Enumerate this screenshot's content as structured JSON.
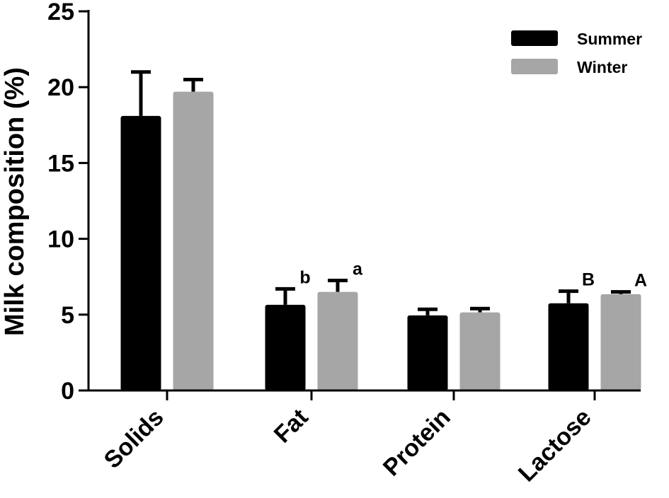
{
  "chart_data": {
    "type": "bar",
    "ylabel": "Milk composition (%)",
    "xlabel": "",
    "ylim": [
      0,
      25
    ],
    "yticks": [
      "0",
      "5",
      "10",
      "15",
      "20",
      "25"
    ],
    "categories": [
      "Solids",
      "Fat",
      "Protein",
      "Lactose"
    ],
    "series": [
      {
        "name": "Summer",
        "color": "#000000",
        "values": [
          18.1,
          5.65,
          4.95,
          5.75
        ],
        "errors": [
          2.9,
          1.05,
          0.4,
          0.8
        ],
        "significance": [
          "",
          "b",
          "",
          "B"
        ]
      },
      {
        "name": "Winter",
        "color": "#a6a6a6",
        "values": [
          19.7,
          6.5,
          5.15,
          6.35
        ],
        "errors": [
          0.8,
          0.75,
          0.25,
          0.15
        ],
        "significance": [
          "",
          "a",
          "",
          "A"
        ]
      }
    ],
    "legend_position": "top-right",
    "grid": false
  }
}
